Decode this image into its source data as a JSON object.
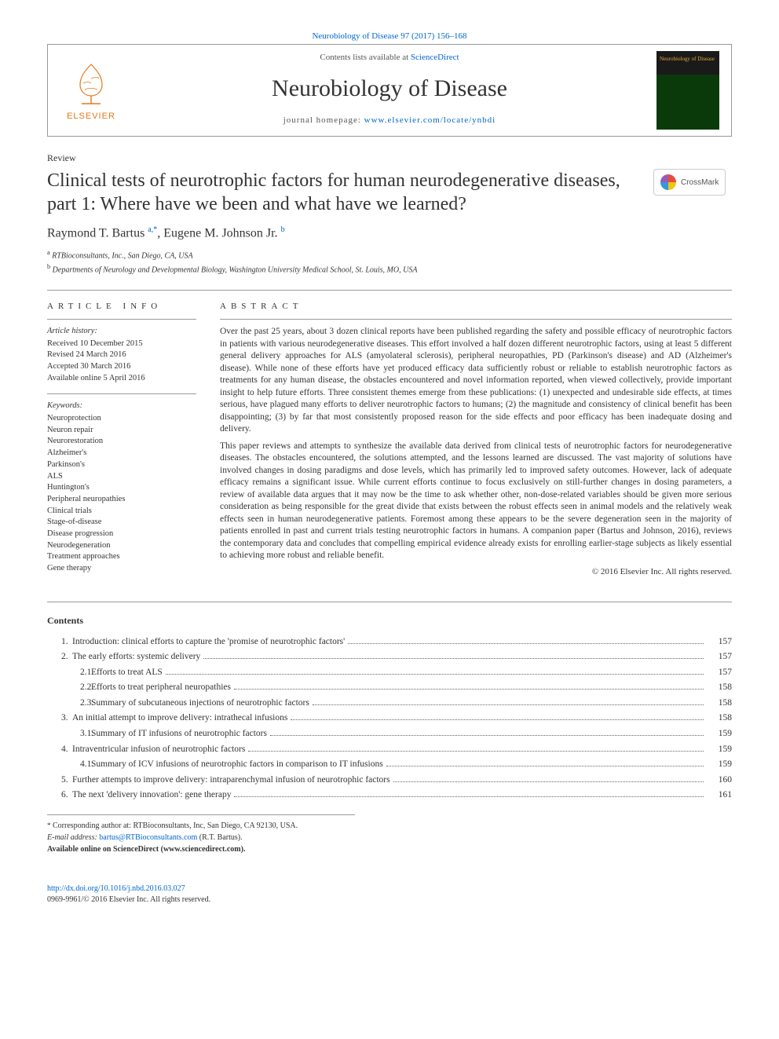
{
  "top_citation": "Neurobiology of Disease 97 (2017) 156–168",
  "header": {
    "contents_line_prefix": "Contents lists available at ",
    "contents_line_link": "ScienceDirect",
    "journal_title": "Neurobiology of Disease",
    "homepage_prefix": "journal homepage: ",
    "homepage_link": "www.elsevier.com/locate/ynbdi",
    "publisher_name": "ELSEVIER",
    "cover_text": "Neurobiology of Disease"
  },
  "article": {
    "type": "Review",
    "title": "Clinical tests of neurotrophic factors for human neurodegenerative diseases, part 1: Where have we been and what have we learned?",
    "crossmark_label": "CrossMark",
    "authors_html": "Raymond T. Bartus <sup>a,*</sup>, Eugene M. Johnson Jr. <sup>b</sup>",
    "affiliations": [
      {
        "sup": "a",
        "text": "RTBioconsultants, Inc., San Diego, CA, USA"
      },
      {
        "sup": "b",
        "text": "Departments of Neurology and Developmental Biology, Washington University Medical School, St. Louis, MO, USA"
      }
    ]
  },
  "article_info": {
    "label": "article info",
    "history_heading": "Article history:",
    "history": [
      "Received 10 December 2015",
      "Revised 24 March 2016",
      "Accepted 30 March 2016",
      "Available online 5 April 2016"
    ],
    "keywords_heading": "Keywords:",
    "keywords": [
      "Neuroprotection",
      "Neuron repair",
      "Neurorestoration",
      "Alzheimer's",
      "Parkinson's",
      "ALS",
      "Huntington's",
      "Peripheral neuropathies",
      "Clinical trials",
      "Stage-of-disease",
      "Disease progression",
      "Neurodegeneration",
      "Treatment approaches",
      "Gene therapy"
    ]
  },
  "abstract": {
    "label": "abstract",
    "paragraphs": [
      "Over the past 25 years, about 3 dozen clinical reports have been published regarding the safety and possible efficacy of neurotrophic factors in patients with various neurodegenerative diseases. This effort involved a half dozen different neurotrophic factors, using at least 5 different general delivery approaches for ALS (amyolateral sclerosis), peripheral neuropathies, PD (Parkinson's disease) and AD (Alzheimer's disease). While none of these efforts have yet produced efficacy data sufficiently robust or reliable to establish neurotrophic factors as treatments for any human disease, the obstacles encountered and novel information reported, when viewed collectively, provide important insight to help future efforts. Three consistent themes emerge from these publications: (1) unexpected and undesirable side effects, at times serious, have plagued many efforts to deliver neurotrophic factors to humans; (2) the magnitude and consistency of clinical benefit has been disappointing; (3) by far that most consistently proposed reason for the side effects and poor efficacy has been inadequate dosing and delivery.",
      "This paper reviews and attempts to synthesize the available data derived from clinical tests of neurotrophic factors for neurodegenerative diseases. The obstacles encountered, the solutions attempted, and the lessons learned are discussed. The vast majority of solutions have involved changes in dosing paradigms and dose levels, which has primarily led to improved safety outcomes. However, lack of adequate efficacy remains a significant issue. While current efforts continue to focus exclusively on still-further changes in dosing parameters, a review of available data argues that it may now be the time to ask whether other, non-dose-related variables should be given more serious consideration as being responsible for the great divide that exists between the robust effects seen in animal models and the relatively weak effects seen in human neurodegenerative patients. Foremost among these appears to be the severe degeneration seen in the majority of patients enrolled in past and current trials testing neurotrophic factors in humans. A companion paper (Bartus and Johnson, 2016), reviews the contemporary data and concludes that compelling empirical evidence already exists for enrolling earlier-stage subjects as likely essential to achieving more robust and reliable benefit."
    ],
    "copyright": "© 2016 Elsevier Inc. All rights reserved."
  },
  "contents": {
    "heading": "Contents",
    "items": [
      {
        "num": "1.",
        "label": "Introduction: clinical efforts to capture the 'promise of neurotrophic factors'",
        "page": "157",
        "level": 0
      },
      {
        "num": "2.",
        "label": "The early efforts: systemic delivery",
        "page": "157",
        "level": 0
      },
      {
        "num": "2.1.",
        "label": "Efforts to treat ALS",
        "page": "157",
        "level": 1
      },
      {
        "num": "2.2.",
        "label": "Efforts to treat peripheral neuropathies",
        "page": "158",
        "level": 1
      },
      {
        "num": "2.3.",
        "label": "Summary of subcutaneous injections of neurotrophic factors",
        "page": "158",
        "level": 1
      },
      {
        "num": "3.",
        "label": "An initial attempt to improve delivery: intrathecal infusions",
        "page": "158",
        "level": 0
      },
      {
        "num": "3.1.",
        "label": "Summary of IT infusions of neurotrophic factors",
        "page": "159",
        "level": 1
      },
      {
        "num": "4.",
        "label": "Intraventricular infusion of neurotrophic factors",
        "page": "159",
        "level": 0
      },
      {
        "num": "4.1.",
        "label": "Summary of ICV infusions of neurotrophic factors in comparison to IT infusions",
        "page": "159",
        "level": 1
      },
      {
        "num": "5.",
        "label": "Further attempts to improve delivery: intraparenchymal infusion of neurotrophic factors",
        "page": "160",
        "level": 0
      },
      {
        "num": "6.",
        "label": "The next 'delivery innovation': gene therapy",
        "page": "161",
        "level": 0
      }
    ]
  },
  "footnotes": {
    "corr_author": "Corresponding author at: RTBioconsultants, Inc, San Diego, CA 92130, USA.",
    "email_label": "E-mail address:",
    "email": "bartus@RTBioconsultants.com",
    "email_suffix": "(R.T. Bartus).",
    "available_line": "Available online on ScienceDirect (www.sciencedirect.com)."
  },
  "bottom": {
    "doi": "http://dx.doi.org/10.1016/j.nbd.2016.03.027",
    "issn_line": "0969-9961/© 2016 Elsevier Inc. All rights reserved."
  },
  "colors": {
    "link": "#0066cc",
    "elsevier_orange": "#e67817",
    "text": "#333333",
    "rule": "#999999"
  }
}
